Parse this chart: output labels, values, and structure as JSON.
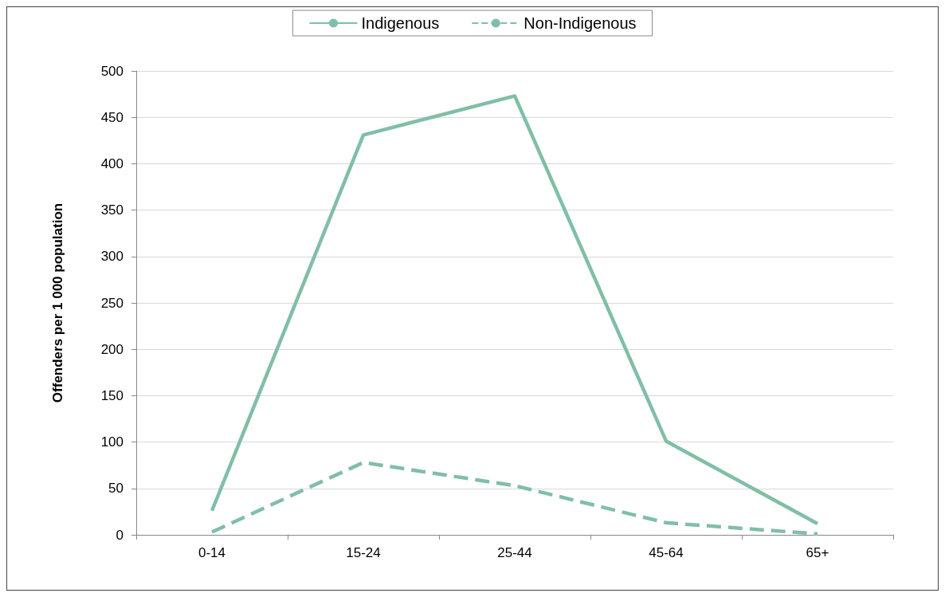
{
  "chart_data": {
    "type": "line",
    "ylabel": "Offenders per 1 000 population",
    "categories": [
      "0-14",
      "15-24",
      "25-44",
      "45-64",
      "65+"
    ],
    "series": [
      {
        "name": "Indigenous",
        "color": "#80bfa5",
        "line_style": "solid",
        "values": [
          26,
          431,
          473,
          101,
          12
        ]
      },
      {
        "name": "Non-Indigenous",
        "color": "#80bfa5",
        "line_style": "dashed",
        "values": [
          3,
          78,
          53,
          13,
          1
        ]
      }
    ],
    "ylim": [
      0,
      500
    ],
    "yticks": [
      0,
      50,
      100,
      150,
      200,
      250,
      300,
      350,
      400,
      450,
      500
    ],
    "grid": "y",
    "legend": "top",
    "marker": "none"
  }
}
